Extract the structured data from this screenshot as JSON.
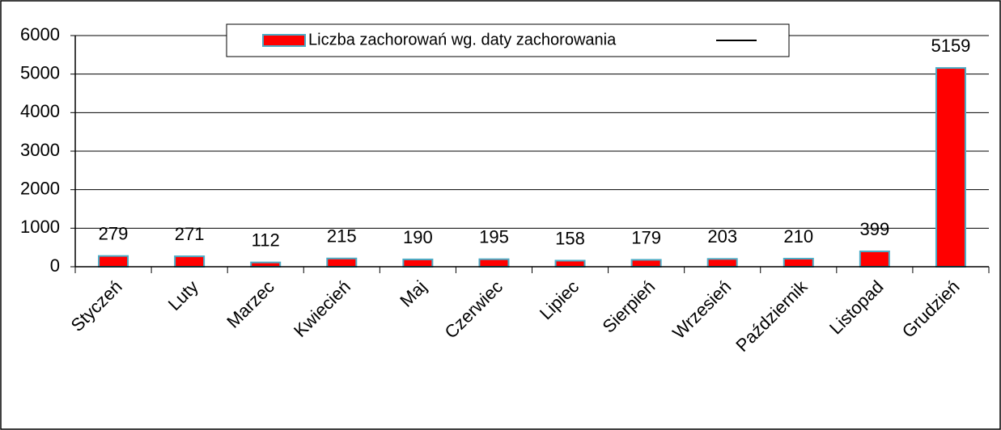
{
  "chart_data": {
    "type": "bar",
    "categories": [
      "Styczeń",
      "Luty",
      "Marzec",
      "Kwiecień",
      "Maj",
      "Czerwiec",
      "Lipiec",
      "Sierpień",
      "Wrzesień",
      "Październik",
      "Listopad",
      "Grudzień"
    ],
    "series": [
      {
        "name": "Liczba zachorowań wg. daty zachorowania",
        "color": "#ff0000",
        "values": [
          279,
          271,
          112,
          215,
          190,
          195,
          158,
          179,
          203,
          210,
          399,
          5159
        ]
      }
    ],
    "ylim": [
      0,
      6000
    ],
    "yticks": [
      0,
      1000,
      2000,
      3000,
      4000,
      5000,
      6000
    ],
    "grid": true,
    "legend": "top"
  }
}
